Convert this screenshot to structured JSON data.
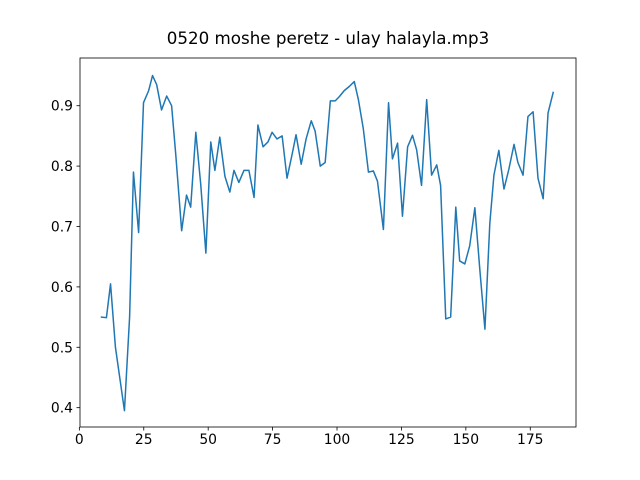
{
  "chart_data": {
    "type": "line",
    "title": "0520 moshe peretz - ulay halayla.mp3",
    "color": "#1f77b4",
    "x": [
      8.6,
      10.5,
      12.1,
      14.0,
      17.5,
      19.5,
      21.0,
      23.0,
      24.9,
      26.9,
      28.4,
      30.0,
      31.9,
      33.9,
      35.8,
      37.4,
      39.7,
      41.6,
      43.2,
      45.2,
      47.1,
      49.1,
      51.0,
      52.6,
      54.5,
      56.5,
      58.4,
      60.0,
      61.9,
      63.9,
      65.8,
      67.8,
      69.3,
      71.3,
      73.2,
      74.8,
      76.7,
      78.7,
      80.6,
      82.6,
      84.1,
      86.1,
      88.0,
      90.0,
      91.5,
      93.5,
      95.4,
      97.4,
      99.3,
      100.9,
      102.8,
      104.8,
      106.7,
      108.3,
      110.2,
      112.2,
      114.1,
      115.7,
      118.0,
      120.0,
      121.5,
      123.5,
      125.4,
      127.4,
      129.3,
      130.9,
      132.8,
      134.8,
      136.7,
      138.7,
      140.2,
      142.2,
      144.1,
      146.1,
      147.6,
      149.6,
      151.5,
      153.5,
      155.4,
      157.4,
      159.3,
      160.9,
      162.8,
      164.8,
      166.7,
      168.7,
      170.2,
      172.2,
      174.1,
      176.1,
      178.0,
      180.0,
      181.9,
      183.9
    ],
    "values": [
      0.55,
      0.549,
      0.605,
      0.5,
      0.395,
      0.55,
      0.79,
      0.69,
      0.905,
      0.925,
      0.95,
      0.935,
      0.893,
      0.916,
      0.9,
      0.82,
      0.693,
      0.752,
      0.732,
      0.856,
      0.77,
      0.656,
      0.84,
      0.793,
      0.848,
      0.783,
      0.757,
      0.793,
      0.773,
      0.793,
      0.793,
      0.748,
      0.868,
      0.832,
      0.84,
      0.856,
      0.845,
      0.85,
      0.78,
      0.82,
      0.852,
      0.803,
      0.845,
      0.875,
      0.858,
      0.8,
      0.806,
      0.908,
      0.908,
      0.915,
      0.925,
      0.932,
      0.94,
      0.91,
      0.862,
      0.79,
      0.792,
      0.775,
      0.695,
      0.905,
      0.812,
      0.838,
      0.717,
      0.832,
      0.851,
      0.827,
      0.768,
      0.91,
      0.785,
      0.802,
      0.768,
      0.547,
      0.55,
      0.732,
      0.643,
      0.638,
      0.668,
      0.731,
      0.63,
      0.53,
      0.705,
      0.785,
      0.826,
      0.762,
      0.795,
      0.836,
      0.806,
      0.785,
      0.882,
      0.89,
      0.78,
      0.746,
      0.888,
      0.922
    ],
    "xlim": [
      0.25,
      192.75
    ],
    "xticks": [
      0,
      25,
      50,
      75,
      100,
      125,
      150,
      175
    ],
    "ylim": [
      0.368,
      0.979
    ],
    "yticks": [
      0.4,
      0.5,
      0.6,
      0.7,
      0.8,
      0.9
    ],
    "grid": false
  }
}
